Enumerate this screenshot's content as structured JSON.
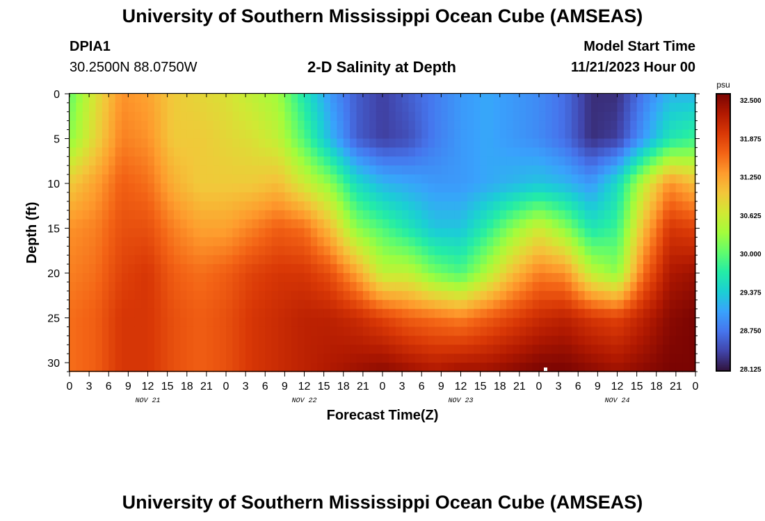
{
  "header": {
    "title": "University of Southern Mississippi Ocean Cube (AMSEAS)",
    "station_id": "DPIA1",
    "coordinates": "30.2500N  88.0750W",
    "model_start_label": "Model Start Time",
    "model_start_value": "11/21/2023 Hour 00"
  },
  "footer": {
    "title": "University of Southern Mississippi Ocean Cube (AMSEAS)"
  },
  "chart_data": {
    "type": "heatmap",
    "title": "2-D Salinity at Depth",
    "xlabel": "Forecast Time(Z)",
    "ylabel": "Depth (ft)",
    "x_unit": "hours from model start",
    "xlim": [
      0,
      96
    ],
    "ylim": [
      0,
      31
    ],
    "x_tick_values": [
      0,
      3,
      6,
      9,
      12,
      15,
      18,
      21,
      24,
      27,
      30,
      33,
      36,
      39,
      42,
      45,
      48,
      51,
      54,
      57,
      60,
      63,
      66,
      69,
      72,
      75,
      78,
      81,
      84,
      87,
      90,
      93,
      96
    ],
    "x_tick_labels": [
      "0",
      "3",
      "6",
      "9",
      "12",
      "15",
      "18",
      "21",
      "0",
      "3",
      "6",
      "9",
      "12",
      "15",
      "18",
      "21",
      "0",
      "3",
      "6",
      "9",
      "12",
      "15",
      "18",
      "21",
      "0",
      "3",
      "6",
      "9",
      "12",
      "15",
      "18",
      "21",
      "0"
    ],
    "date_labels": [
      {
        "label": "NOV 21",
        "hour": 12
      },
      {
        "label": "NOV 22",
        "hour": 36
      },
      {
        "label": "NOV 23",
        "hour": 60
      },
      {
        "label": "NOV 24",
        "hour": 84
      }
    ],
    "y_ticks": [
      0,
      5,
      10,
      15,
      20,
      25,
      30
    ],
    "colorbar": {
      "unit": "psu",
      "min": 28.125,
      "max": 32.5,
      "ticks": [
        "32.500",
        "31.875",
        "31.250",
        "30.625",
        "30.000",
        "29.375",
        "28.750",
        "28.125"
      ],
      "colors": [
        "#30123b",
        "#4145ab",
        "#4675ed",
        "#39a2fc",
        "#1bcfd4",
        "#24eca6",
        "#61fc6c",
        "#a4fc3b",
        "#d1e834",
        "#f3c63a",
        "#fe9b2d",
        "#f36315",
        "#d93806",
        "#b11901",
        "#7a0402"
      ]
    },
    "grid": {
      "hours": [
        0,
        4,
        8,
        12,
        16,
        20,
        24,
        28,
        32,
        36,
        40,
        44,
        48,
        52,
        56,
        60,
        64,
        68,
        72,
        76,
        80,
        84,
        88,
        92,
        96
      ],
      "depths_ft": [
        0,
        5,
        10,
        15,
        20,
        25,
        31
      ]
    },
    "values_psu": [
      [
        30.0,
        30.7,
        31.3,
        31.2,
        30.9,
        30.8,
        30.7,
        30.5,
        30.3,
        29.6,
        29.0,
        28.6,
        28.4,
        28.6,
        28.8,
        29.0,
        29.1,
        29.0,
        28.9,
        28.7,
        28.3,
        28.3,
        28.8,
        29.2,
        29.2
      ],
      [
        30.2,
        30.8,
        31.4,
        31.3,
        30.9,
        30.9,
        30.8,
        30.7,
        30.5,
        29.9,
        29.2,
        28.6,
        28.4,
        28.5,
        28.8,
        29.0,
        29.1,
        29.0,
        28.9,
        28.7,
        28.3,
        28.4,
        29.0,
        29.6,
        29.8
      ],
      [
        30.9,
        31.2,
        31.6,
        31.5,
        31.1,
        30.9,
        30.9,
        30.9,
        31.0,
        30.6,
        30.2,
        29.5,
        29.2,
        29.1,
        29.0,
        29.0,
        29.1,
        29.2,
        29.3,
        29.2,
        29.0,
        29.5,
        30.5,
        31.3,
        31.0
      ],
      [
        31.3,
        31.4,
        31.7,
        31.7,
        31.4,
        31.2,
        31.2,
        31.4,
        31.6,
        31.5,
        31.0,
        30.2,
        29.9,
        29.6,
        29.3,
        29.3,
        29.7,
        30.2,
        30.6,
        30.2,
        29.6,
        29.8,
        31.0,
        31.9,
        31.8
      ],
      [
        31.4,
        31.5,
        31.8,
        31.9,
        31.6,
        31.5,
        31.6,
        31.8,
        31.9,
        31.9,
        31.7,
        31.2,
        30.5,
        30.5,
        30.1,
        29.9,
        30.4,
        31.0,
        31.4,
        31.3,
        30.5,
        30.2,
        31.5,
        32.2,
        32.3
      ],
      [
        31.5,
        31.6,
        31.9,
        31.9,
        31.7,
        31.6,
        31.7,
        31.9,
        32.0,
        32.1,
        32.1,
        32.0,
        31.8,
        31.6,
        31.5,
        31.4,
        31.6,
        31.8,
        32.0,
        32.1,
        31.9,
        31.8,
        32.1,
        32.4,
        32.5
      ],
      [
        31.5,
        31.6,
        31.9,
        31.9,
        31.7,
        31.6,
        31.7,
        31.9,
        32.0,
        32.1,
        32.2,
        32.3,
        32.4,
        32.3,
        32.2,
        32.3,
        32.3,
        32.4,
        32.5,
        32.5,
        32.4,
        32.3,
        32.4,
        32.5,
        32.5
      ]
    ]
  }
}
